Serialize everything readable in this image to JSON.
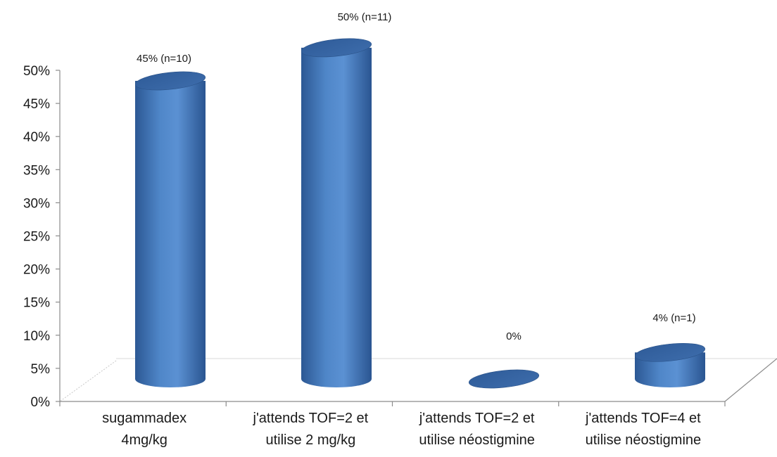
{
  "chart_data": {
    "type": "bar",
    "categories": [
      [
        "sugammadex",
        "4mg/kg"
      ],
      [
        "j'attends TOF=2 et",
        "utilise 2 mg/kg"
      ],
      [
        "j'attends TOF=2 et",
        "utilise néostigmine"
      ],
      [
        "j'attends TOF=4 et",
        "utilise néostigmine"
      ]
    ],
    "values": [
      45,
      50,
      0,
      4
    ],
    "data_labels": [
      "45% (n=10)",
      "50% (n=11)",
      "0%",
      "4% (n=1)"
    ],
    "ylim": [
      0,
      50
    ],
    "yticks": [
      0,
      5,
      10,
      15,
      20,
      25,
      30,
      35,
      40,
      45,
      50
    ],
    "ytick_labels": [
      "0%",
      "5%",
      "10%",
      "15%",
      "20%",
      "25%",
      "30%",
      "35%",
      "40%",
      "45%",
      "50%"
    ],
    "style": "3d-cylinder",
    "colors": {
      "bar": "#4a7ebb",
      "bar_dark": "#2e5a96",
      "bar_light": "#6b9ad6",
      "axis": "#8c8c8c",
      "floor": "#d9d9d9"
    }
  }
}
